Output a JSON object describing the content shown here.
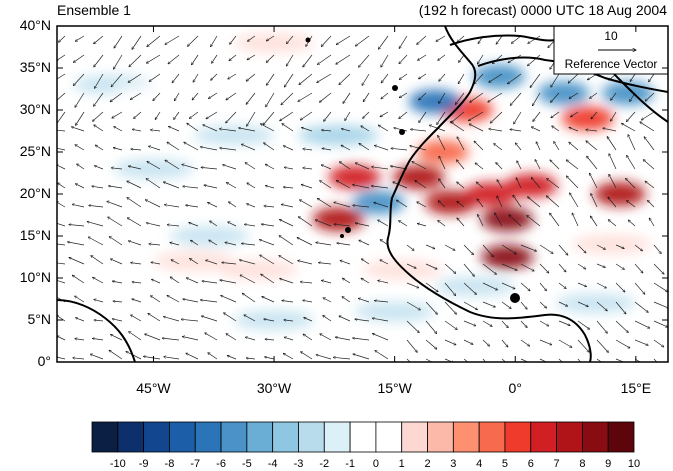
{
  "map": {
    "title_left": "Ensemble 1",
    "title_right": "(192 h forecast) 0000 UTC 18 Aug 2004",
    "lat_labels": [
      "40°N",
      "35°N",
      "30°N",
      "25°N",
      "20°N",
      "15°N",
      "10°N",
      "5°N",
      "0°"
    ],
    "lat_values": [
      40,
      35,
      30,
      25,
      20,
      15,
      10,
      5,
      0
    ],
    "lon_labels": [
      "45°W",
      "30°W",
      "15°W",
      "0°",
      "15°E"
    ],
    "lon_values": [
      -45,
      -30,
      -15,
      0,
      15
    ],
    "extent": {
      "lon_min": -57,
      "lon_max": 19,
      "lat_min": 0,
      "lat_max": 40
    },
    "reference_vector": {
      "value": "10",
      "label": "Reference Vector"
    }
  },
  "colorbar": {
    "labels": [
      "-10",
      "-9",
      "-8",
      "-7",
      "-6",
      "-5",
      "-4",
      "-3",
      "-2",
      "-1",
      "0",
      "1",
      "2",
      "3",
      "4",
      "5",
      "6",
      "7",
      "8",
      "9",
      "10"
    ],
    "colors": [
      "#0b1e44",
      "#0d2f6b",
      "#12468f",
      "#1c5ea8",
      "#2b74b8",
      "#4a92c7",
      "#6aaed6",
      "#8ec7e2",
      "#b8dcec",
      "#dcf0f8",
      "#ffffff",
      "#ffffff",
      "#fdd8d2",
      "#fcb9a9",
      "#fc9070",
      "#f86a4d",
      "#ee3b2c",
      "#d11f24",
      "#b01419",
      "#8a0c13",
      "#5e050c"
    ]
  },
  "anomaly_field": [
    {
      "lon": -20,
      "lat": 22,
      "value": 7
    },
    {
      "lon": -12,
      "lat": 22,
      "value": 8
    },
    {
      "lon": -8,
      "lat": 19,
      "value": 8
    },
    {
      "lon": -3,
      "lat": 20,
      "value": 7
    },
    {
      "lon": 2,
      "lat": 21,
      "value": 7
    },
    {
      "lon": -1,
      "lat": 17,
      "value": 9
    },
    {
      "lon": -1,
      "lat": 12.5,
      "value": 9
    },
    {
      "lon": -22,
      "lat": 17,
      "value": 8
    },
    {
      "lon": -6,
      "lat": 30,
      "value": 6
    },
    {
      "lon": 13,
      "lat": 20,
      "value": 8
    },
    {
      "lon": 9,
      "lat": 29,
      "value": 6
    },
    {
      "lon": -9,
      "lat": 25,
      "value": 5
    },
    {
      "lon": -17,
      "lat": 19,
      "value": -5
    },
    {
      "lon": -10,
      "lat": 31,
      "value": -6
    },
    {
      "lon": -2,
      "lat": 34,
      "value": -5
    },
    {
      "lon": 6,
      "lat": 32,
      "value": -5
    },
    {
      "lon": 14,
      "lat": 32,
      "value": -5
    },
    {
      "lon": -22,
      "lat": 27,
      "value": -3
    },
    {
      "lon": -35,
      "lat": 27,
      "value": -2
    },
    {
      "lon": -50,
      "lat": 33,
      "value": -2
    },
    {
      "lon": -38,
      "lat": 15,
      "value": -2
    },
    {
      "lon": -45,
      "lat": 23,
      "value": -2
    },
    {
      "lon": -30,
      "lat": 5,
      "value": -2
    },
    {
      "lon": -15,
      "lat": 6,
      "value": -2
    },
    {
      "lon": -5,
      "lat": 9,
      "value": -2
    },
    {
      "lon": 10,
      "lat": 7,
      "value": -2
    },
    {
      "lon": -32,
      "lat": 11,
      "value": 2
    },
    {
      "lon": -40,
      "lat": 12,
      "value": 2
    },
    {
      "lon": -14,
      "lat": 11,
      "value": 2
    },
    {
      "lon": -30,
      "lat": 38,
      "value": 2
    },
    {
      "lon": -45,
      "lat": 32,
      "value": 1
    },
    {
      "lon": 12,
      "lat": 14,
      "value": 2
    }
  ]
}
